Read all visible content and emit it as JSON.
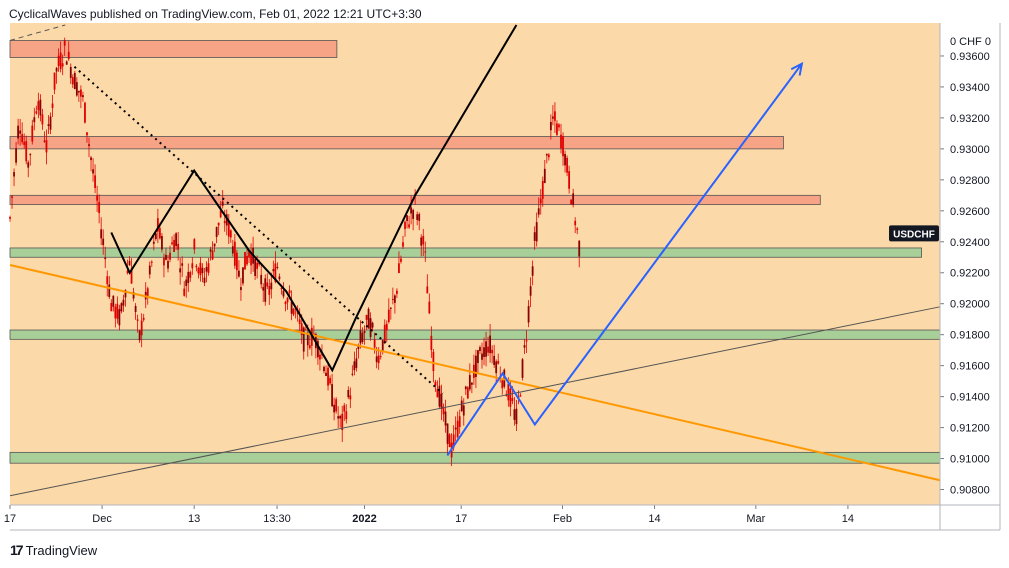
{
  "header": {
    "publish_text": "CyclicalWaves published on TradingView.com, Feb 01, 2022 12:21 UTC+3:30"
  },
  "footer": {
    "brand": "TradingView",
    "logo_glyph": "17"
  },
  "symbol_badge": "USDCHF",
  "axis_header": "0 CHF 0",
  "colors": {
    "background": "#fcd9a8",
    "candle": "#e00000",
    "resistance_zone": "#f7a385",
    "support_zone": "#a9cf98",
    "orange_trendline": "#ff9800",
    "black_path": "#000000",
    "blue_projection": "#2962ff",
    "badge_bg": "#131722"
  },
  "chart_data": {
    "type": "candlestick",
    "symbol": "USDCHF",
    "y_axis": {
      "ticks": [
        "0.90800",
        "0.91000",
        "0.91200",
        "0.91400",
        "0.91600",
        "0.91800",
        "0.92000",
        "0.92200",
        "0.92400",
        "0.92600",
        "0.92800",
        "0.93000",
        "0.93200",
        "0.93400",
        "0.93600"
      ],
      "range": [
        0.907,
        0.938
      ]
    },
    "x_axis": {
      "ticks": [
        {
          "label": "17",
          "pos": 0
        },
        {
          "label": "Dec",
          "pos": 10
        },
        {
          "label": "13",
          "pos": 20
        },
        {
          "label": "13:30",
          "pos": 29
        },
        {
          "label": "2022",
          "pos": 38.5,
          "bold": true
        },
        {
          "label": "17",
          "pos": 49
        },
        {
          "label": "Feb",
          "pos": 60
        },
        {
          "label": "14",
          "pos": 70
        },
        {
          "label": "Mar",
          "pos": 81
        },
        {
          "label": "14",
          "pos": 91
        }
      ],
      "range": [
        0,
        101
      ]
    },
    "price_series": [
      [
        0,
        0.9255
      ],
      [
        1,
        0.932
      ],
      [
        2,
        0.929
      ],
      [
        3,
        0.9335
      ],
      [
        4,
        0.93
      ],
      [
        5,
        0.935
      ],
      [
        6,
        0.9365
      ],
      [
        7,
        0.9345
      ],
      [
        8,
        0.933
      ],
      [
        9,
        0.9285
      ],
      [
        10,
        0.9245
      ],
      [
        11,
        0.92
      ],
      [
        12,
        0.919
      ],
      [
        13,
        0.923
      ],
      [
        14,
        0.9175
      ],
      [
        15,
        0.921
      ],
      [
        16,
        0.925
      ],
      [
        17,
        0.9225
      ],
      [
        18,
        0.9245
      ],
      [
        19,
        0.921
      ],
      [
        20,
        0.9235
      ],
      [
        21,
        0.9215
      ],
      [
        22,
        0.9235
      ],
      [
        23,
        0.926
      ],
      [
        24,
        0.9245
      ],
      [
        25,
        0.9215
      ],
      [
        26,
        0.9235
      ],
      [
        27,
        0.922
      ],
      [
        28,
        0.9205
      ],
      [
        29,
        0.9225
      ],
      [
        30,
        0.9205
      ],
      [
        31,
        0.9195
      ],
      [
        32,
        0.9175
      ],
      [
        33,
        0.918
      ],
      [
        34,
        0.9165
      ],
      [
        35,
        0.914
      ],
      [
        36,
        0.912
      ],
      [
        37,
        0.9145
      ],
      [
        38,
        0.9175
      ],
      [
        39,
        0.919
      ],
      [
        40,
        0.9165
      ],
      [
        41,
        0.9185
      ],
      [
        42,
        0.921
      ],
      [
        43,
        0.925
      ],
      [
        44,
        0.9265
      ],
      [
        45,
        0.9235
      ],
      [
        46,
        0.916
      ],
      [
        47,
        0.913
      ],
      [
        48,
        0.9105
      ],
      [
        49,
        0.913
      ],
      [
        50,
        0.915
      ],
      [
        51,
        0.9165
      ],
      [
        52,
        0.9175
      ],
      [
        53,
        0.916
      ],
      [
        54,
        0.9145
      ],
      [
        55,
        0.9125
      ],
      [
        56,
        0.9175
      ],
      [
        57,
        0.924
      ],
      [
        58,
        0.928
      ],
      [
        59,
        0.932
      ],
      [
        60,
        0.9305
      ],
      [
        61,
        0.927
      ],
      [
        62,
        0.923
      ]
    ],
    "y_candle_amplitude": 0.0008,
    "zones": [
      {
        "kind": "resistance",
        "x1": 0,
        "x2": 35.5,
        "y1": 0.9359,
        "y2": 0.937
      },
      {
        "kind": "resistance",
        "x1": 0,
        "x2": 84,
        "y1": 0.93,
        "y2": 0.9308
      },
      {
        "kind": "resistance",
        "x1": 0,
        "x2": 88,
        "y1": 0.9264,
        "y2": 0.927
      },
      {
        "kind": "support",
        "x1": 0,
        "x2": 99,
        "y1": 0.923,
        "y2": 0.9236
      },
      {
        "kind": "support",
        "x1": 0,
        "x2": 101,
        "y1": 0.9177,
        "y2": 0.9183
      },
      {
        "kind": "support",
        "x1": 0,
        "x2": 101,
        "y1": 0.9097,
        "y2": 0.9104
      }
    ],
    "lines": [
      {
        "name": "orange-trendline",
        "style": "solid",
        "color": "orange",
        "points": [
          [
            0,
            0.9225
          ],
          [
            101,
            0.9086
          ]
        ]
      },
      {
        "name": "grey-trendline",
        "style": "thin",
        "color": "grey",
        "points": [
          [
            0,
            0.9076
          ],
          [
            101,
            0.9198
          ]
        ]
      },
      {
        "name": "dotted-trendline",
        "style": "dotted",
        "color": "black",
        "points": [
          [
            7,
            0.9353
          ],
          [
            47,
            0.9142
          ]
        ]
      },
      {
        "name": "dashed-trendline",
        "style": "dashed",
        "color": "black",
        "points": [
          [
            0,
            0.937
          ],
          [
            6,
            0.938
          ]
        ]
      },
      {
        "name": "black-wave-path",
        "style": "solid",
        "color": "black",
        "points": [
          [
            11,
            0.9246
          ],
          [
            13,
            0.922
          ],
          [
            20,
            0.9286
          ],
          [
            26,
            0.9234
          ],
          [
            30,
            0.9208
          ],
          [
            35,
            0.9157
          ],
          [
            37.5,
            0.919
          ],
          [
            44,
            0.927
          ],
          [
            55,
            0.938
          ]
        ]
      },
      {
        "name": "blue-projection-path",
        "style": "solid",
        "color": "blue",
        "points": [
          [
            47.5,
            0.9102
          ],
          [
            53.5,
            0.9155
          ],
          [
            57,
            0.9122
          ],
          [
            86,
            0.9355
          ]
        ]
      }
    ],
    "current_price_marker": 0.9239
  }
}
